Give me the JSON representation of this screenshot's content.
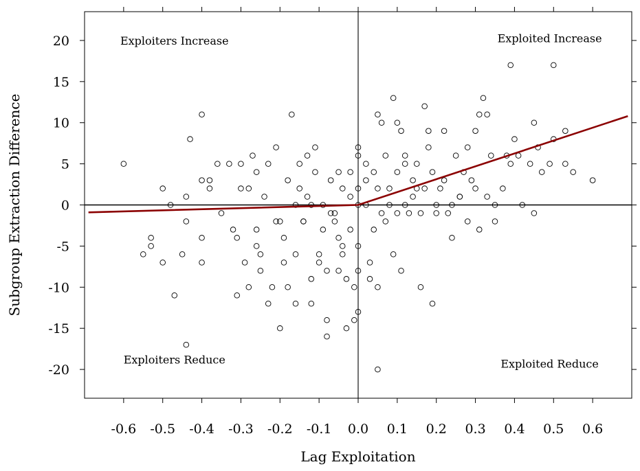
{
  "chart_data": {
    "type": "scatter",
    "title": "",
    "xlabel": "Lag Exploitation",
    "ylabel": "Subgroup Extraction Difference",
    "xlim": [
      -0.7,
      0.7
    ],
    "ylim": [
      -23.5,
      23.5
    ],
    "x_ticks": [
      -0.6,
      -0.5,
      -0.4,
      -0.3,
      -0.2,
      -0.1,
      0.0,
      0.1,
      0.2,
      0.3,
      0.4,
      0.5,
      0.6
    ],
    "x_tick_labels": [
      "-0.6",
      "-0.5",
      "-0.4",
      "-0.3",
      "-0.2",
      "-0.1",
      "0.0",
      "0.1",
      "0.2",
      "0.3",
      "0.4",
      "0.5",
      "0.6"
    ],
    "y_ticks": [
      -20,
      -15,
      -10,
      -5,
      0,
      5,
      10,
      15,
      20
    ],
    "y_tick_labels": [
      "-20",
      "-15",
      "-10",
      "-5",
      "0",
      "5",
      "10",
      "15",
      "20"
    ],
    "grid": false,
    "reference_lines": {
      "horizontal_y": 0,
      "vertical_x": 0
    },
    "quadrant_labels": [
      {
        "text": "Exploiters Increase",
        "x": -0.47,
        "y": 19.5
      },
      {
        "text": "Exploited Increase",
        "x": 0.49,
        "y": 19.8
      },
      {
        "text": "Exploiters Reduce",
        "x": -0.47,
        "y": -19.3
      },
      {
        "text": "Exploited Reduce",
        "x": 0.49,
        "y": -19.8
      }
    ],
    "fit_line": {
      "color": "#8b0000",
      "points": [
        [
          -0.69,
          -0.9
        ],
        [
          0.0,
          0.0
        ],
        [
          0.69,
          10.8
        ]
      ]
    },
    "series": [
      {
        "marker": "open-circle",
        "points": [
          [
            -0.6,
            5
          ],
          [
            -0.55,
            -6
          ],
          [
            -0.53,
            -4
          ],
          [
            -0.53,
            -5
          ],
          [
            -0.5,
            2
          ],
          [
            -0.5,
            -7
          ],
          [
            -0.48,
            0
          ],
          [
            -0.47,
            -11
          ],
          [
            -0.45,
            -6
          ],
          [
            -0.44,
            -17
          ],
          [
            -0.44,
            1
          ],
          [
            -0.43,
            8
          ],
          [
            -0.44,
            -2
          ],
          [
            -0.4,
            11
          ],
          [
            -0.4,
            3
          ],
          [
            -0.4,
            -4
          ],
          [
            -0.4,
            -7
          ],
          [
            -0.38,
            3
          ],
          [
            -0.38,
            2
          ],
          [
            -0.36,
            5
          ],
          [
            -0.35,
            -1
          ],
          [
            -0.33,
            5
          ],
          [
            -0.32,
            -3
          ],
          [
            -0.31,
            -4
          ],
          [
            -0.31,
            -11
          ],
          [
            -0.3,
            2
          ],
          [
            -0.3,
            5
          ],
          [
            -0.29,
            -7
          ],
          [
            -0.28,
            2
          ],
          [
            -0.28,
            -10
          ],
          [
            -0.27,
            6
          ],
          [
            -0.26,
            4
          ],
          [
            -0.26,
            -3
          ],
          [
            -0.26,
            -5
          ],
          [
            -0.25,
            -6
          ],
          [
            -0.25,
            -8
          ],
          [
            -0.24,
            1
          ],
          [
            -0.23,
            -12
          ],
          [
            -0.23,
            5
          ],
          [
            -0.22,
            -10
          ],
          [
            -0.21,
            7
          ],
          [
            -0.21,
            -2
          ],
          [
            -0.2,
            -15
          ],
          [
            -0.2,
            -2
          ],
          [
            -0.19,
            -4
          ],
          [
            -0.19,
            -7
          ],
          [
            -0.18,
            3
          ],
          [
            -0.18,
            -10
          ],
          [
            -0.17,
            11
          ],
          [
            -0.16,
            -12
          ],
          [
            -0.16,
            -6
          ],
          [
            -0.15,
            5
          ],
          [
            -0.15,
            2
          ],
          [
            -0.14,
            -2
          ],
          [
            -0.13,
            1
          ],
          [
            -0.13,
            6
          ],
          [
            -0.12,
            -9
          ],
          [
            -0.12,
            -12
          ],
          [
            -0.11,
            7
          ],
          [
            -0.1,
            -6
          ],
          [
            -0.1,
            -7
          ],
          [
            -0.09,
            0
          ],
          [
            -0.09,
            -3
          ],
          [
            -0.08,
            -8
          ],
          [
            -0.08,
            -14
          ],
          [
            -0.08,
            -16
          ],
          [
            -0.07,
            3
          ],
          [
            -0.06,
            -2
          ],
          [
            -0.05,
            -4
          ],
          [
            -0.05,
            -8
          ],
          [
            -0.05,
            4
          ],
          [
            -0.04,
            -5
          ],
          [
            -0.04,
            -6
          ],
          [
            -0.03,
            -9
          ],
          [
            -0.03,
            -15
          ],
          [
            -0.02,
            4
          ],
          [
            -0.02,
            -3
          ],
          [
            -0.01,
            -10
          ],
          [
            -0.01,
            -14
          ],
          [
            0.0,
            2
          ],
          [
            0.0,
            -5
          ],
          [
            0.0,
            0
          ],
          [
            0.0,
            6
          ],
          [
            0.0,
            7
          ],
          [
            0.0,
            -8
          ],
          [
            0.0,
            -13
          ],
          [
            -0.02,
            1
          ],
          [
            -0.04,
            2
          ],
          [
            -0.06,
            -1
          ],
          [
            -0.07,
            -1
          ],
          [
            -0.11,
            4
          ],
          [
            -0.12,
            0
          ],
          [
            -0.14,
            -2
          ],
          [
            -0.16,
            0
          ],
          [
            0.02,
            0
          ],
          [
            0.02,
            3
          ],
          [
            0.02,
            5
          ],
          [
            0.03,
            -7
          ],
          [
            0.03,
            -9
          ],
          [
            0.04,
            -3
          ],
          [
            0.04,
            4
          ],
          [
            0.05,
            -10
          ],
          [
            0.05,
            -20
          ],
          [
            0.05,
            11
          ],
          [
            0.05,
            2
          ],
          [
            0.06,
            10
          ],
          [
            0.06,
            -1
          ],
          [
            0.07,
            6
          ],
          [
            0.07,
            -2
          ],
          [
            0.08,
            0
          ],
          [
            0.08,
            2
          ],
          [
            0.09,
            13
          ],
          [
            0.09,
            -6
          ],
          [
            0.1,
            4
          ],
          [
            0.1,
            10
          ],
          [
            0.11,
            9
          ],
          [
            0.11,
            -8
          ],
          [
            0.12,
            5
          ],
          [
            0.12,
            6
          ],
          [
            0.13,
            -1
          ],
          [
            0.14,
            3
          ],
          [
            0.15,
            5
          ],
          [
            0.16,
            -1
          ],
          [
            0.16,
            -10
          ],
          [
            0.17,
            12
          ],
          [
            0.17,
            2
          ],
          [
            0.18,
            9
          ],
          [
            0.18,
            7
          ],
          [
            0.19,
            -12
          ],
          [
            0.19,
            4
          ],
          [
            0.2,
            0
          ],
          [
            0.21,
            2
          ],
          [
            0.22,
            3
          ],
          [
            0.22,
            9
          ],
          [
            0.23,
            -1
          ],
          [
            0.24,
            -4
          ],
          [
            0.25,
            6
          ],
          [
            0.26,
            1
          ],
          [
            0.27,
            4
          ],
          [
            0.28,
            -2
          ],
          [
            0.29,
            3
          ],
          [
            0.3,
            2
          ],
          [
            0.31,
            11
          ],
          [
            0.31,
            -3
          ],
          [
            0.32,
            13
          ],
          [
            0.33,
            11
          ],
          [
            0.33,
            1
          ],
          [
            0.34,
            6
          ],
          [
            0.35,
            0
          ],
          [
            0.37,
            2
          ],
          [
            0.38,
            6
          ],
          [
            0.39,
            17
          ],
          [
            0.39,
            5
          ],
          [
            0.4,
            8
          ],
          [
            0.41,
            6
          ],
          [
            0.44,
            5
          ],
          [
            0.45,
            -1
          ],
          [
            0.45,
            10
          ],
          [
            0.46,
            7
          ],
          [
            0.47,
            4
          ],
          [
            0.49,
            5
          ],
          [
            0.5,
            17
          ],
          [
            0.5,
            8
          ],
          [
            0.53,
            9
          ],
          [
            0.53,
            5
          ],
          [
            0.55,
            4
          ],
          [
            0.6,
            3
          ],
          [
            0.1,
            -1
          ],
          [
            0.12,
            0
          ],
          [
            0.14,
            1
          ],
          [
            0.15,
            2
          ],
          [
            0.2,
            -1
          ],
          [
            0.24,
            0
          ],
          [
            0.26,
            1
          ],
          [
            0.28,
            7
          ],
          [
            0.3,
            9
          ],
          [
            0.35,
            -2
          ],
          [
            0.42,
            0
          ]
        ]
      }
    ]
  }
}
